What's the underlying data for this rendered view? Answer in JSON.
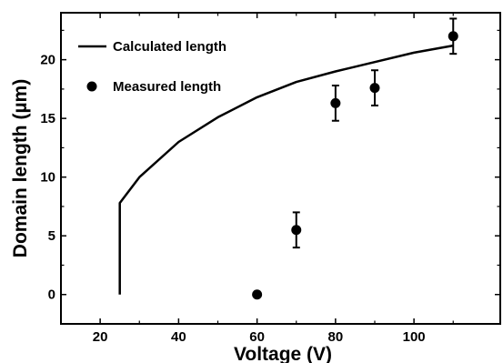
{
  "chart_data": {
    "type": "line",
    "title": "",
    "xlabel": "Voltage (V)",
    "ylabel": "Domain length (µm)",
    "xlim": [
      10,
      122
    ],
    "ylim": [
      -2.5,
      24
    ],
    "xticks": [
      20,
      40,
      60,
      80,
      100
    ],
    "yticks": [
      0,
      5,
      10,
      15,
      20
    ],
    "grid": false,
    "legend_position": "top-left",
    "series": [
      {
        "name": "Calculated length",
        "type": "line",
        "color": "#000000",
        "x": [
          25,
          25,
          30,
          40,
          50,
          60,
          70,
          80,
          90,
          100,
          110
        ],
        "y": [
          0,
          7.8,
          10.0,
          13.0,
          15.1,
          16.8,
          18.1,
          19.0,
          19.8,
          20.6,
          21.2
        ]
      },
      {
        "name": "Measured length",
        "type": "scatter",
        "color": "#000000",
        "x": [
          60,
          70,
          80,
          90,
          110
        ],
        "y": [
          0,
          5.5,
          16.3,
          17.6,
          22.0
        ],
        "error": [
          0,
          1.5,
          1.5,
          1.5,
          1.5
        ]
      }
    ]
  }
}
